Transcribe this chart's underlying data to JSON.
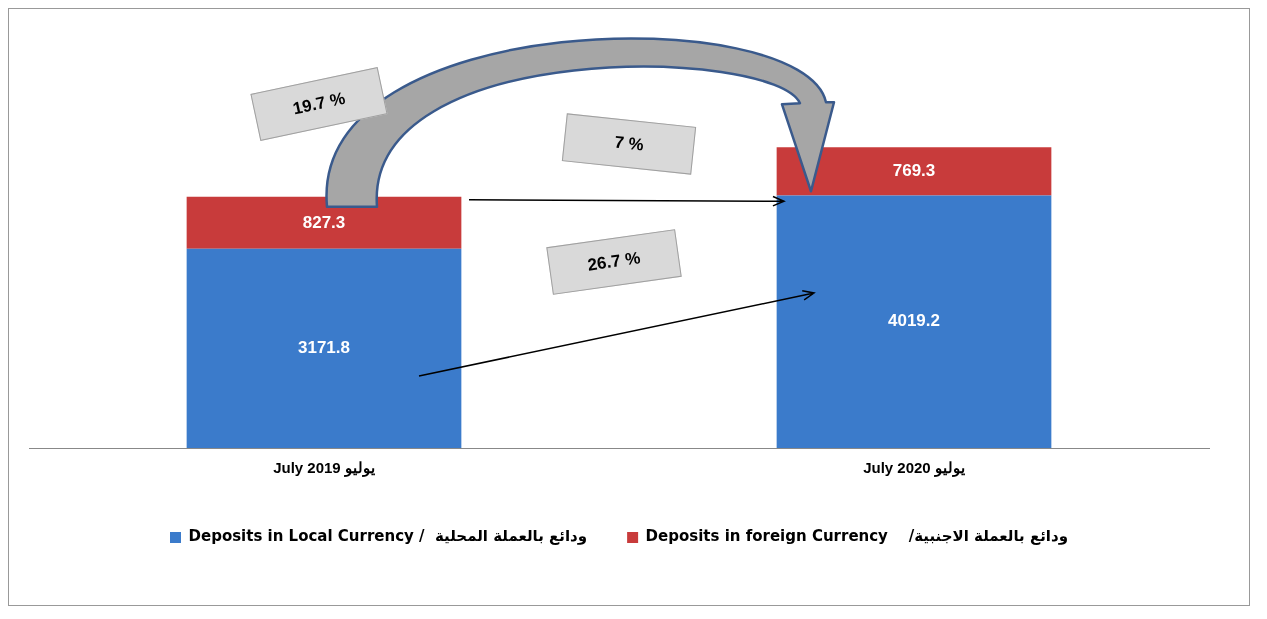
{
  "chart_data": {
    "type": "bar",
    "stacked": true,
    "categories": [
      "July 2019 يوليو",
      "July 2020 يوليو"
    ],
    "series": [
      {
        "name": "Deposits in Local Currency /  ودائع بالعملة المحلية",
        "color": "#3b7bcb",
        "values": [
          3171.8,
          4019.2
        ]
      },
      {
        "name": "Deposits in foreign Currency    /ودائع بالعملة الاجنبية",
        "color": "#c83b3b",
        "values": [
          827.3,
          769.3
        ]
      }
    ],
    "data_labels": true,
    "legend": "bottom",
    "grid": false,
    "annotations": [
      "19.7 %",
      "7 %",
      "26.7 %"
    ]
  }
}
